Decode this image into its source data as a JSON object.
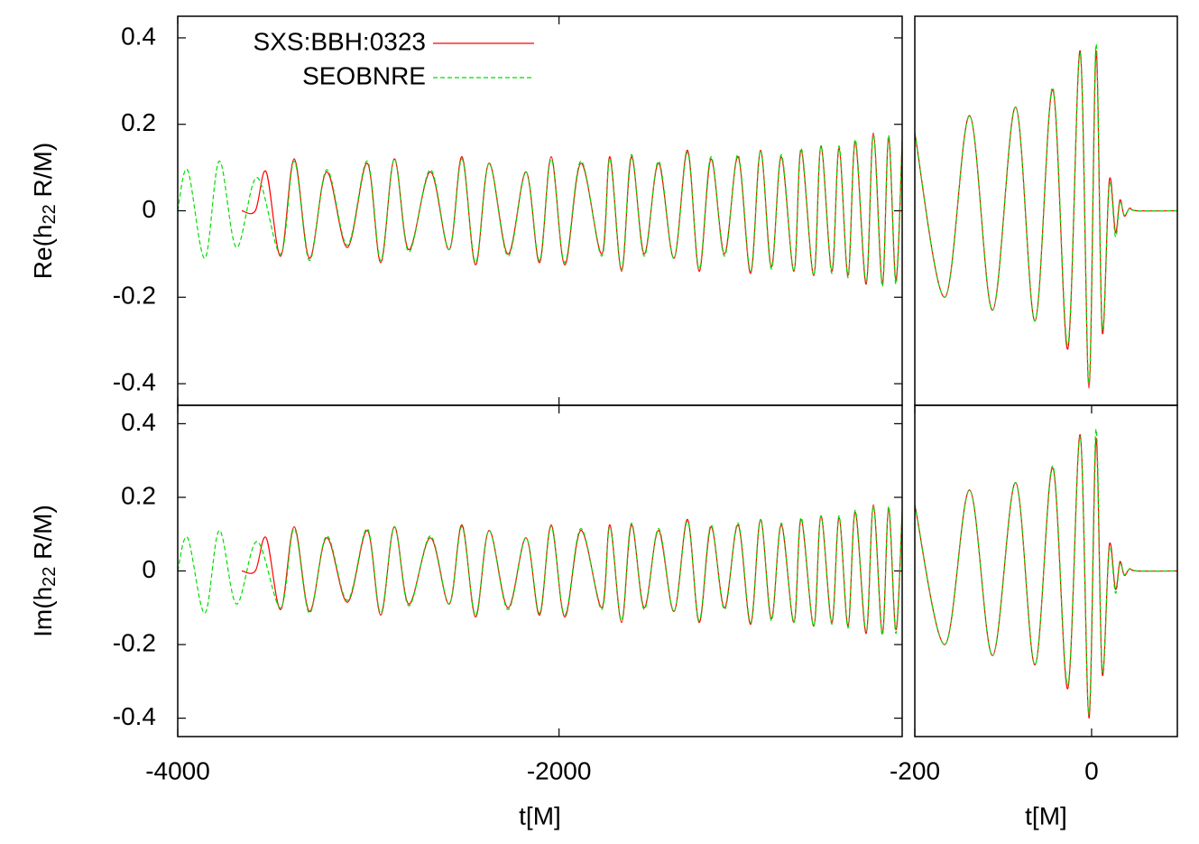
{
  "chart_data": [
    {
      "type": "line",
      "ylabel": [
        "Re(h",
        "22",
        " R/M)"
      ],
      "xlim": [
        -4000,
        -200
      ],
      "ylim": [
        -0.45,
        0.45
      ],
      "xticks": [
        -4000,
        -2000
      ],
      "yticks": [
        0.4,
        0.2,
        0,
        -0.2,
        -0.4
      ],
      "legend": "top left",
      "series": [
        {
          "name": "SXS:BBH:0323",
          "color": "#ff0000",
          "dashed": false,
          "x": [
            -3664,
            -3593,
            -3536,
            -3460,
            -3389,
            -3309,
            -3219,
            -3110,
            -3006,
            -2935,
            -2864,
            -2788,
            -2675,
            -2576,
            -2509,
            -2438,
            -2367,
            -2268,
            -2173,
            -2102,
            -2041,
            -1970,
            -1885,
            -1776,
            -1733,
            -1672,
            -1620,
            -1553,
            -1478,
            -1397,
            -1326,
            -1265,
            -1203,
            -1132,
            -1061,
            -995,
            -943,
            -886,
            -834,
            -768,
            -730,
            -664,
            -626,
            -569,
            -531,
            -484,
            -446,
            -389,
            -351,
            -304,
            -271,
            -233,
            -200
          ],
          "values": [
            0,
            0,
            0.09,
            -0.105,
            0.12,
            -0.11,
            0.09,
            -0.085,
            0.11,
            -0.12,
            0.12,
            -0.09,
            0.09,
            -0.09,
            0.125,
            -0.125,
            0.11,
            -0.1,
            0.09,
            -0.12,
            0.125,
            -0.125,
            0.11,
            -0.1,
            0.125,
            -0.14,
            0.125,
            -0.1,
            0.11,
            -0.11,
            0.14,
            -0.14,
            0.12,
            -0.1,
            0.125,
            -0.145,
            0.14,
            -0.13,
            0.125,
            -0.14,
            0.14,
            -0.15,
            0.15,
            -0.14,
            0.145,
            -0.15,
            0.16,
            -0.17,
            0.18,
            -0.17,
            0.17,
            -0.16,
            0.16
          ]
        },
        {
          "name": "SEOBNRE",
          "color": "#00dd00",
          "dashed": true,
          "x": [
            -4000,
            -3948,
            -3858,
            -3782,
            -3692,
            -3584,
            -3460,
            -3389,
            -3309,
            -3219,
            -3110,
            -3006,
            -2935,
            -2864,
            -2788,
            -2675,
            -2576,
            -2509,
            -2438,
            -2367,
            -2268,
            -2173,
            -2102,
            -2041,
            -1970,
            -1885,
            -1776,
            -1733,
            -1672,
            -1620,
            -1553,
            -1478,
            -1397,
            -1326,
            -1265,
            -1203,
            -1132,
            -1061,
            -995,
            -943,
            -886,
            -834,
            -768,
            -730,
            -664,
            -626,
            -569,
            -531,
            -484,
            -446,
            -389,
            -351,
            -304,
            -271,
            -233,
            -200
          ],
          "values": [
            0,
            0.094,
            -0.11,
            0.115,
            -0.085,
            0.077,
            -0.1,
            0.115,
            -0.115,
            0.095,
            -0.08,
            0.115,
            -0.115,
            0.12,
            -0.095,
            0.095,
            -0.09,
            0.12,
            -0.12,
            0.11,
            -0.105,
            0.09,
            -0.115,
            0.12,
            -0.12,
            0.115,
            -0.105,
            0.12,
            -0.135,
            0.13,
            -0.105,
            0.115,
            -0.11,
            0.135,
            -0.135,
            0.125,
            -0.105,
            0.13,
            -0.14,
            0.14,
            -0.135,
            0.13,
            -0.14,
            0.145,
            -0.15,
            0.15,
            -0.145,
            0.15,
            -0.155,
            0.165,
            -0.165,
            0.175,
            -0.175,
            0.175,
            -0.17,
            0.165
          ]
        }
      ]
    },
    {
      "type": "line",
      "xlim": [
        -200,
        97
      ],
      "ylim": [
        -0.45,
        0.45
      ],
      "series": [
        {
          "color": "#ff0000",
          "dashed": false,
          "x": [
            -200,
            -166,
            -138,
            -112,
            -86,
            -64,
            -44,
            -27,
            -13,
            -3,
            5,
            12,
            20,
            27,
            32,
            37,
            43,
            51,
            97
          ],
          "values": [
            0.18,
            -0.2,
            0.22,
            -0.23,
            0.24,
            -0.255,
            0.28,
            -0.32,
            0.37,
            -0.41,
            0.37,
            -0.28,
            0.07,
            -0.05,
            0.025,
            -0.012,
            0.006,
            0,
            0
          ]
        },
        {
          "color": "#00dd00",
          "dashed": true,
          "x": [
            -200,
            -166,
            -138,
            -112,
            -86,
            -64,
            -44,
            -27,
            -13,
            -3,
            5,
            12,
            20,
            27,
            32,
            37,
            43,
            51,
            97
          ],
          "values": [
            0.18,
            -0.2,
            0.22,
            -0.23,
            0.24,
            -0.255,
            0.285,
            -0.31,
            0.365,
            -0.4,
            0.385,
            -0.27,
            0.06,
            -0.06,
            0.02,
            -0.01,
            0.005,
            0,
            0
          ]
        }
      ]
    },
    {
      "type": "line",
      "ylabel": [
        "Im(h",
        "22",
        " R/M)"
      ],
      "xlabel": "t[M]",
      "xlim": [
        -4000,
        -200
      ],
      "ylim": [
        -0.45,
        0.45
      ],
      "xticks": [
        -4000,
        -2000
      ],
      "yticks": [
        0.4,
        0.2,
        0,
        -0.2,
        -0.4
      ],
      "series": [
        {
          "color": "#ff0000",
          "dashed": false,
          "x": [
            -3664,
            -3593,
            -3536,
            -3460,
            -3389,
            -3309,
            -3219,
            -3110,
            -3006,
            -2935,
            -2864,
            -2788,
            -2675,
            -2576,
            -2509,
            -2438,
            -2367,
            -2268,
            -2173,
            -2102,
            -2041,
            -1970,
            -1885,
            -1776,
            -1733,
            -1672,
            -1620,
            -1553,
            -1478,
            -1397,
            -1326,
            -1265,
            -1203,
            -1132,
            -1061,
            -995,
            -943,
            -886,
            -834,
            -768,
            -730,
            -664,
            -626,
            -569,
            -531,
            -484,
            -446,
            -389,
            -351,
            -304,
            -271,
            -233,
            -200
          ],
          "values": [
            0,
            0,
            0.09,
            -0.105,
            0.12,
            -0.11,
            0.09,
            -0.085,
            0.11,
            -0.12,
            0.12,
            -0.09,
            0.09,
            -0.09,
            0.125,
            -0.125,
            0.11,
            -0.1,
            0.09,
            -0.12,
            0.125,
            -0.125,
            0.11,
            -0.1,
            0.125,
            -0.14,
            0.125,
            -0.1,
            0.11,
            -0.11,
            0.14,
            -0.14,
            0.12,
            -0.1,
            0.125,
            -0.145,
            0.14,
            -0.13,
            0.125,
            -0.14,
            0.14,
            -0.15,
            0.15,
            -0.14,
            0.145,
            -0.15,
            0.16,
            -0.17,
            0.18,
            -0.17,
            0.17,
            -0.16,
            0.16
          ]
        },
        {
          "color": "#00dd00",
          "dashed": true,
          "x": [
            -4000,
            -3948,
            -3858,
            -3782,
            -3692,
            -3584,
            -3460,
            -3389,
            -3309,
            -3219,
            -3110,
            -3006,
            -2935,
            -2864,
            -2788,
            -2675,
            -2576,
            -2509,
            -2438,
            -2367,
            -2268,
            -2173,
            -2102,
            -2041,
            -1970,
            -1885,
            -1776,
            -1733,
            -1672,
            -1620,
            -1553,
            -1478,
            -1397,
            -1326,
            -1265,
            -1203,
            -1132,
            -1061,
            -995,
            -943,
            -886,
            -834,
            -768,
            -730,
            -664,
            -626,
            -569,
            -531,
            -484,
            -446,
            -389,
            -351,
            -304,
            -271,
            -233,
            -200
          ],
          "values": [
            0,
            0.09,
            -0.115,
            0.11,
            -0.09,
            0.08,
            -0.1,
            0.115,
            -0.115,
            0.095,
            -0.08,
            0.115,
            -0.115,
            0.12,
            -0.095,
            0.095,
            -0.09,
            0.12,
            -0.12,
            0.11,
            -0.105,
            0.09,
            -0.115,
            0.12,
            -0.12,
            0.115,
            -0.105,
            0.12,
            -0.135,
            0.13,
            -0.105,
            0.115,
            -0.11,
            0.135,
            -0.135,
            0.125,
            -0.105,
            0.13,
            -0.14,
            0.14,
            -0.135,
            0.13,
            -0.14,
            0.145,
            -0.15,
            0.15,
            -0.145,
            0.15,
            -0.155,
            0.165,
            -0.165,
            0.175,
            -0.175,
            0.175,
            -0.17,
            0.165
          ]
        }
      ]
    },
    {
      "type": "line",
      "xlabel": "t[M]",
      "xlim": [
        -200,
        97
      ],
      "ylim": [
        -0.45,
        0.45
      ],
      "xticks": [
        -200,
        0
      ],
      "series": [
        {
          "color": "#ff0000",
          "dashed": false,
          "x": [
            -200,
            -166,
            -138,
            -112,
            -86,
            -64,
            -44,
            -27,
            -13,
            -3,
            5,
            12,
            20,
            27,
            32,
            37,
            43,
            51,
            97
          ],
          "values": [
            0.18,
            -0.2,
            0.22,
            -0.23,
            0.24,
            -0.255,
            0.28,
            -0.32,
            0.37,
            -0.4,
            0.36,
            -0.28,
            0.07,
            -0.05,
            0.025,
            -0.012,
            0.006,
            0,
            0
          ]
        },
        {
          "color": "#00dd00",
          "dashed": true,
          "x": [
            -200,
            -166,
            -138,
            -112,
            -86,
            -64,
            -44,
            -27,
            -13,
            -3,
            5,
            12,
            20,
            27,
            32,
            37,
            43,
            51,
            97
          ],
          "values": [
            0.18,
            -0.2,
            0.22,
            -0.23,
            0.24,
            -0.255,
            0.285,
            -0.31,
            0.365,
            -0.39,
            0.385,
            -0.27,
            0.06,
            -0.06,
            0.02,
            -0.01,
            0.005,
            0,
            0
          ]
        }
      ]
    }
  ]
}
